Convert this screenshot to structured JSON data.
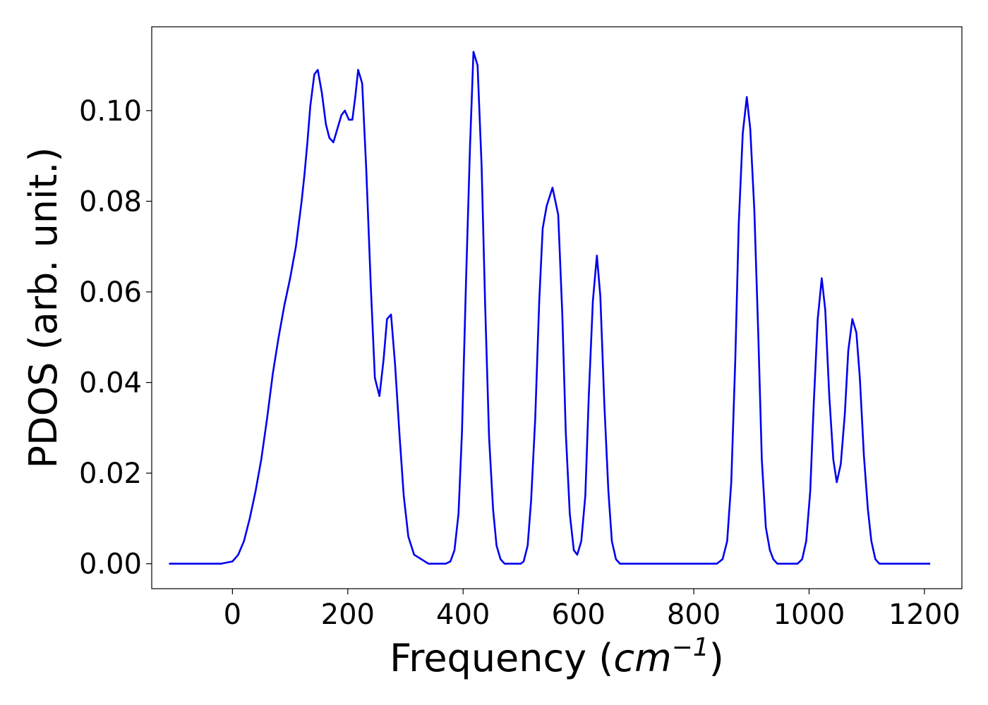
{
  "chart_data": {
    "type": "line",
    "title": "",
    "xlabel": "Frequency",
    "xlabel_unit_base": "cm",
    "xlabel_unit_exp": "−1",
    "ylabel": "PDOS (arb. unit.)",
    "xlim": [
      -140,
      1265
    ],
    "ylim": [
      -0.0055,
      0.1185
    ],
    "xticks": [
      0,
      200,
      400,
      600,
      800,
      1000,
      1200
    ],
    "xtick_labels": [
      "0",
      "200",
      "400",
      "600",
      "800",
      "1000",
      "1200"
    ],
    "yticks": [
      0.0,
      0.02,
      0.04,
      0.06,
      0.08,
      0.1
    ],
    "ytick_labels": [
      "0.00",
      "0.02",
      "0.04",
      "0.06",
      "0.08",
      "0.10"
    ],
    "grid": false,
    "legend": "none",
    "series": [
      {
        "color": "#0000ee",
        "x": [
          -110,
          -60,
          -20,
          0,
          10,
          20,
          30,
          40,
          50,
          60,
          70,
          80,
          90,
          100,
          110,
          120,
          125,
          130,
          135,
          142,
          148,
          155,
          162,
          168,
          175,
          182,
          189,
          195,
          202,
          208,
          213,
          218,
          225,
          232,
          240,
          247,
          255,
          262,
          268,
          275,
          282,
          290,
          297,
          305,
          315,
          340,
          370,
          378,
          385,
          392,
          398,
          405,
          412,
          418,
          425,
          432,
          438,
          445,
          452,
          458,
          465,
          472,
          480,
          500,
          505,
          512,
          518,
          525,
          532,
          538,
          545,
          550,
          555,
          560,
          565,
          572,
          578,
          585,
          592,
          598,
          605,
          612,
          618,
          625,
          632,
          638,
          645,
          652,
          658,
          665,
          672,
          680,
          700,
          800,
          840,
          850,
          858,
          865,
          872,
          878,
          885,
          892,
          898,
          905,
          912,
          918,
          925,
          932,
          938,
          945,
          952,
          960,
          980,
          988,
          995,
          1002,
          1008,
          1015,
          1022,
          1028,
          1035,
          1042,
          1048,
          1055,
          1062,
          1068,
          1075,
          1082,
          1088,
          1095,
          1102,
          1108,
          1115,
          1122,
          1130,
          1150,
          1210
        ],
        "y": [
          0.0,
          0.0,
          0.0,
          0.0005,
          0.002,
          0.005,
          0.01,
          0.016,
          0.023,
          0.032,
          0.042,
          0.05,
          0.057,
          0.063,
          0.07,
          0.08,
          0.086,
          0.093,
          0.101,
          0.108,
          0.109,
          0.104,
          0.097,
          0.094,
          0.093,
          0.096,
          0.099,
          0.1,
          0.098,
          0.098,
          0.103,
          0.109,
          0.106,
          0.087,
          0.061,
          0.041,
          0.037,
          0.045,
          0.054,
          0.055,
          0.044,
          0.028,
          0.015,
          0.006,
          0.002,
          0.0,
          0.0,
          0.0005,
          0.003,
          0.011,
          0.029,
          0.062,
          0.092,
          0.113,
          0.11,
          0.088,
          0.058,
          0.028,
          0.012,
          0.004,
          0.001,
          0.0,
          0.0,
          0.0,
          0.0005,
          0.004,
          0.014,
          0.032,
          0.058,
          0.074,
          0.079,
          0.081,
          0.083,
          0.08,
          0.077,
          0.055,
          0.029,
          0.011,
          0.003,
          0.002,
          0.005,
          0.015,
          0.037,
          0.058,
          0.068,
          0.059,
          0.035,
          0.016,
          0.005,
          0.001,
          0.0,
          0.0,
          0.0,
          0.0,
          0.0,
          0.001,
          0.005,
          0.018,
          0.045,
          0.075,
          0.095,
          0.103,
          0.096,
          0.078,
          0.05,
          0.023,
          0.008,
          0.003,
          0.001,
          0.0,
          0.0,
          0.0,
          0.0,
          0.001,
          0.005,
          0.016,
          0.035,
          0.054,
          0.063,
          0.056,
          0.037,
          0.023,
          0.018,
          0.022,
          0.033,
          0.047,
          0.054,
          0.051,
          0.041,
          0.024,
          0.012,
          0.005,
          0.001,
          0.0,
          0.0,
          0.0,
          0.0
        ]
      }
    ]
  }
}
